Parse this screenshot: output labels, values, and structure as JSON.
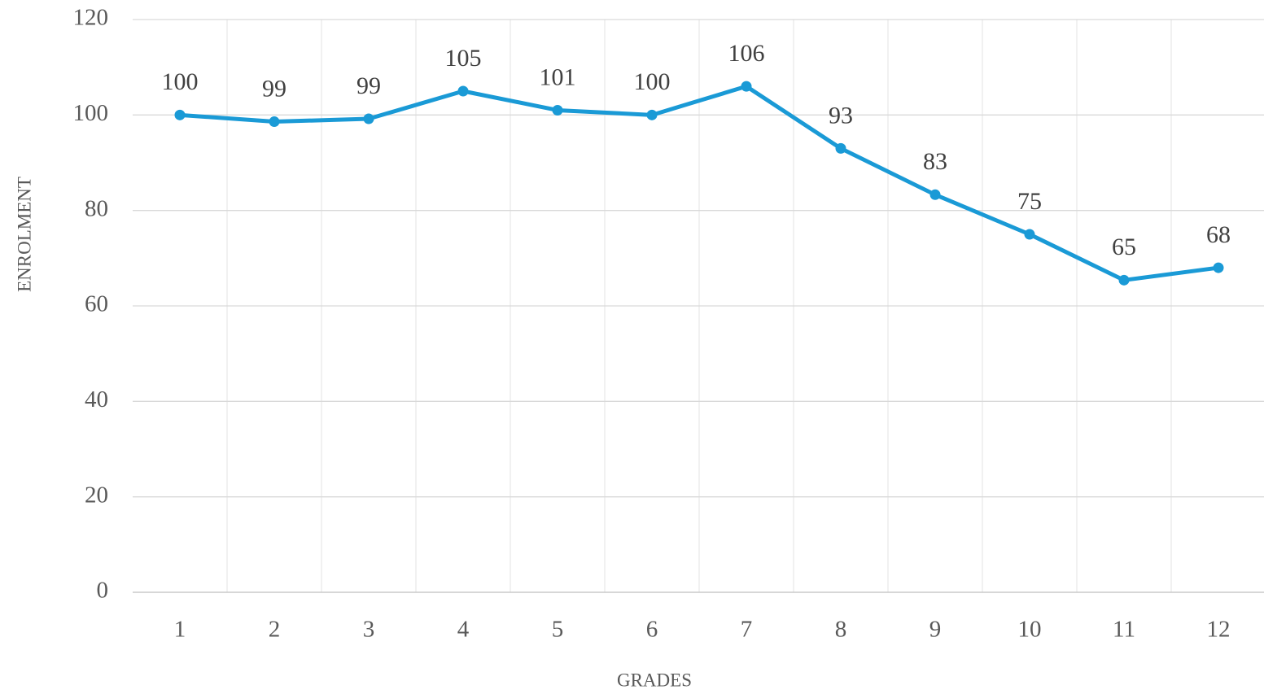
{
  "chart_data": {
    "type": "line",
    "x_label": "GRADES",
    "y_label": "ENROLMENT",
    "categories": [
      "1",
      "2",
      "3",
      "4",
      "5",
      "6",
      "7",
      "8",
      "9",
      "10",
      "11",
      "12"
    ],
    "series": [
      {
        "name": "Enrolment",
        "color": "#1a9ad6",
        "values": [
          100,
          98.6,
          99.2,
          105,
          101,
          100,
          106,
          93,
          83.3,
          75,
          65.4,
          68
        ],
        "value_labels": [
          "100",
          "99",
          "99",
          "105",
          "101",
          "100",
          "106",
          "93",
          "83",
          "75",
          "65",
          "68"
        ]
      }
    ],
    "ylim": [
      0,
      120
    ],
    "yticks": [
      0,
      20,
      40,
      60,
      80,
      100,
      120
    ],
    "grid": true
  }
}
